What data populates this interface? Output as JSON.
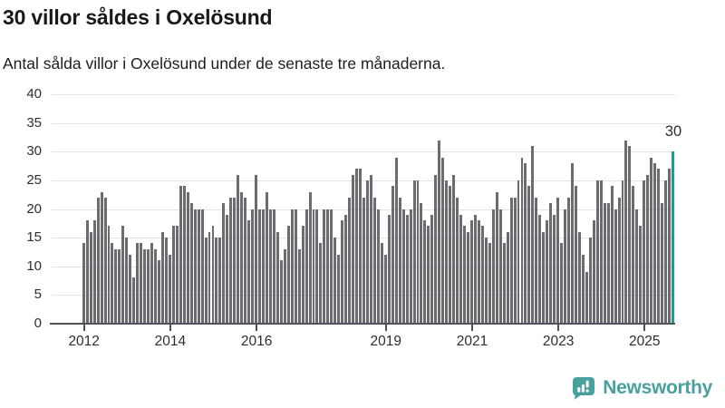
{
  "header": {
    "title": "30 villor såldes i Oxelösund",
    "subtitle": "Antal sålda villor i Oxelösund under de senaste tre månaderna."
  },
  "chart_data": {
    "type": "bar",
    "title": "30 villor såldes i Oxelösund",
    "subtitle": "Antal sålda villor i Oxelösund under de senaste tre månaderna.",
    "ylabel": "",
    "xlabel": "",
    "ylim": [
      0,
      40
    ],
    "y_ticks": [
      0,
      5,
      10,
      15,
      20,
      25,
      30,
      35,
      40
    ],
    "grid": true,
    "legend_position": "none",
    "start_year": 2012,
    "lead_empty_slots": 7,
    "x_tick_years": [
      2012,
      2014,
      2016,
      2019,
      2021,
      2023,
      2025
    ],
    "values": [
      14,
      18,
      16,
      18,
      22,
      23,
      22,
      17,
      14,
      13,
      13,
      17,
      15,
      12,
      8,
      14,
      14,
      13,
      13,
      14,
      13,
      11,
      16,
      15,
      12,
      17,
      17,
      24,
      24,
      23,
      21,
      20,
      20,
      20,
      15,
      16,
      17,
      15,
      15,
      21,
      19,
      22,
      22,
      26,
      23,
      22,
      18,
      20,
      26,
      20,
      20,
      23,
      20,
      20,
      16,
      11,
      13,
      17,
      20,
      20,
      13,
      17,
      20,
      23,
      20,
      20,
      14,
      20,
      20,
      20,
      15,
      12,
      18,
      19,
      22,
      26,
      27,
      27,
      22,
      25,
      26,
      22,
      20,
      14,
      12,
      19,
      24,
      29,
      22,
      20,
      19,
      20,
      25,
      25,
      21,
      18,
      17,
      19,
      26,
      32,
      29,
      25,
      24,
      26,
      22,
      19,
      17,
      16,
      18,
      19,
      18,
      17,
      15,
      14,
      20,
      23,
      20,
      14,
      16,
      22,
      22,
      25,
      29,
      28,
      24,
      31,
      22,
      19,
      16,
      18,
      21,
      19,
      22,
      14,
      20,
      22,
      28,
      24,
      16,
      12,
      9,
      15,
      18,
      25,
      25,
      21,
      21,
      24,
      20,
      22,
      25,
      32,
      31,
      24,
      20,
      17,
      25,
      26,
      29,
      28,
      27,
      21,
      25,
      27,
      30
    ],
    "highlight_index": 164,
    "highlight_label": "30",
    "bar_color": "#6b6b70",
    "highlight_color": "#1b9b99",
    "gridline_color": "#e3e3e3",
    "axis_color": "#515157"
  },
  "footer": {
    "brand": "Newsworthy",
    "brand_color": "#48a19e",
    "icon": "bar-chart-speech-bubble-icon"
  }
}
